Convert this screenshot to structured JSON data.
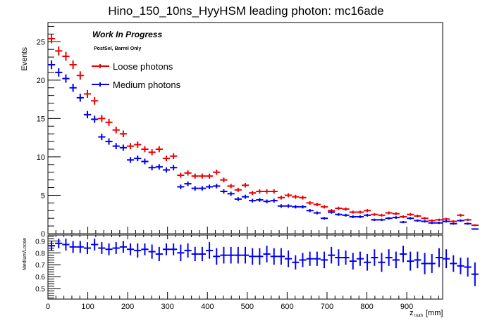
{
  "chart_data": [
    {
      "type": "scatter",
      "panel": "main",
      "title": "Hino_150_10ns_HyyHSM leading photon: mc16ade",
      "xlabel": "z_truth [mm]",
      "ylabel": "Events",
      "xlim": [
        0,
        990
      ],
      "ylim": [
        0,
        27.5
      ],
      "x_ticks": [
        "0",
        "100",
        "200",
        "300",
        "400",
        "500",
        "600",
        "700",
        "800",
        "900"
      ],
      "y_ticks": [
        "0",
        "5",
        "10",
        "15",
        "20",
        "25"
      ],
      "annotations": [
        "Work In Progress",
        "PostSel, Barrel Only"
      ],
      "legend_position": "top-center",
      "bin_width": 18,
      "series": [
        {
          "name": "Loose photons",
          "color": "#ee0000",
          "values": [
            25.4,
            23.8,
            23.1,
            22.0,
            20.6,
            18.2,
            17.3,
            15.0,
            14.5,
            13.5,
            13.0,
            11.4,
            11.6,
            11.0,
            10.6,
            11.0,
            9.8,
            10.1,
            7.6,
            7.9,
            7.5,
            7.5,
            7.5,
            8.0,
            7.0,
            6.2,
            5.7,
            6.3,
            5.3,
            5.5,
            5.5,
            5.5,
            4.7,
            5.0,
            4.8,
            4.7,
            4.0,
            3.8,
            3.5,
            3.0,
            3.3,
            3.2,
            2.8,
            2.8,
            3.0,
            2.5,
            2.4,
            2.7,
            2.6,
            2.2,
            2.5,
            2.3,
            2.0,
            1.7,
            1.8,
            1.9,
            1.6,
            2.4,
            1.8,
            1.1
          ]
        },
        {
          "name": "Medium photons",
          "color": "#0000ee",
          "values": [
            22.0,
            21.0,
            20.2,
            19.0,
            17.7,
            15.5,
            14.9,
            12.6,
            12.0,
            11.4,
            11.2,
            9.6,
            9.8,
            9.4,
            8.6,
            8.7,
            8.3,
            8.6,
            6.1,
            6.5,
            5.9,
            5.9,
            6.1,
            6.2,
            5.5,
            5.2,
            4.5,
            4.8,
            4.3,
            4.4,
            4.2,
            4.3,
            3.6,
            3.6,
            3.5,
            3.5,
            3.0,
            2.7,
            2.0,
            2.8,
            2.5,
            2.4,
            2.2,
            2.2,
            2.4,
            1.8,
            1.8,
            2.0,
            2.1,
            1.5,
            2.0,
            1.7,
            1.6,
            1.4,
            1.4,
            1.6,
            1.3,
            1.7,
            1.3,
            0.6
          ]
        }
      ]
    },
    {
      "type": "scatter",
      "panel": "ratio",
      "ylabel": "Medium/Loose",
      "xlabel": "z_truth [mm]",
      "xlim": [
        0,
        990
      ],
      "ylim": [
        0.41,
        0.95
      ],
      "y_ticks": [
        "0.5",
        "0.6",
        "0.7",
        "0.8",
        "0.9"
      ],
      "x_ticks": [
        "0",
        "100",
        "200",
        "300",
        "400",
        "500",
        "600",
        "700",
        "800",
        "900"
      ],
      "series": [
        {
          "name": "Medium/Loose",
          "color": "#0000ee",
          "values": [
            0.86,
            0.88,
            0.87,
            0.85,
            0.85,
            0.84,
            0.87,
            0.84,
            0.83,
            0.84,
            0.85,
            0.83,
            0.82,
            0.83,
            0.81,
            0.79,
            0.83,
            0.83,
            0.8,
            0.82,
            0.79,
            0.79,
            0.82,
            0.77,
            0.78,
            0.78,
            0.78,
            0.78,
            0.77,
            0.77,
            0.79,
            0.77,
            0.77,
            0.75,
            0.72,
            0.74,
            0.75,
            0.75,
            0.74,
            0.78,
            0.76,
            0.76,
            0.73,
            0.75,
            0.72,
            0.76,
            0.72,
            0.76,
            0.74,
            0.79,
            0.73,
            0.74,
            0.71,
            0.71,
            0.76,
            0.75,
            0.71,
            0.69,
            0.68,
            0.62
          ],
          "errors": [
            0.04,
            0.04,
            0.05,
            0.05,
            0.05,
            0.05,
            0.05,
            0.05,
            0.05,
            0.05,
            0.05,
            0.05,
            0.06,
            0.05,
            0.06,
            0.06,
            0.05,
            0.05,
            0.07,
            0.06,
            0.06,
            0.06,
            0.07,
            0.07,
            0.07,
            0.07,
            0.07,
            0.07,
            0.07,
            0.07,
            0.07,
            0.07,
            0.07,
            0.07,
            0.06,
            0.06,
            0.06,
            0.06,
            0.07,
            0.07,
            0.07,
            0.06,
            0.07,
            0.06,
            0.07,
            0.07,
            0.08,
            0.07,
            0.07,
            0.07,
            0.08,
            0.07,
            0.09,
            0.08,
            0.08,
            0.08,
            0.07,
            0.07,
            0.08,
            0.1
          ]
        }
      ]
    }
  ]
}
